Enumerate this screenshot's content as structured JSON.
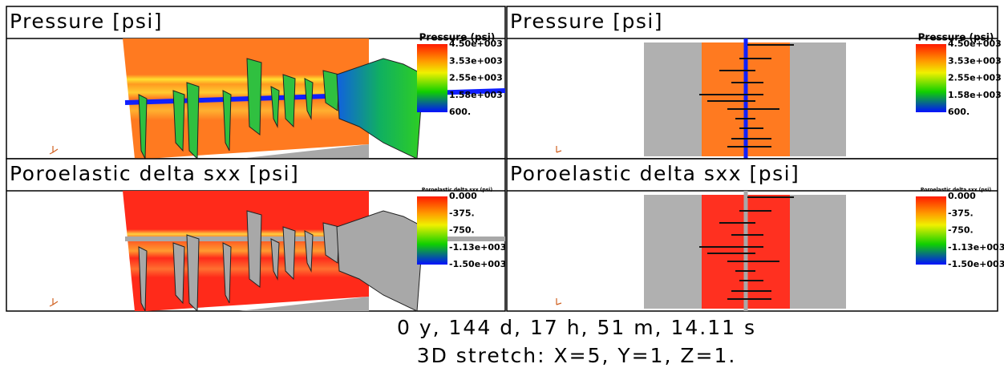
{
  "panels": [
    {
      "title": "Pressure [psi]",
      "legend": {
        "title": "Pressure (psi)",
        "labels": [
          "4.50e+003",
          "3.53e+003",
          "2.55e+003",
          "1.58e+003",
          "600."
        ]
      }
    },
    {
      "title": "Pressure [psi]",
      "legend": {
        "title": "Pressure (psi)",
        "labels": [
          "4.50e+003",
          "3.53e+003",
          "2.55e+003",
          "1.58e+003",
          "600."
        ]
      }
    },
    {
      "title": "Poroelastic delta sxx [psi]",
      "legend": {
        "title": "Poroelastic delta sxx (psi)",
        "labels": [
          "0.000",
          "-375.",
          "-750.",
          "-1.13e+003",
          "-1.50e+003"
        ]
      }
    },
    {
      "title": "Poroelastic delta sxx [psi]",
      "legend": {
        "title": "Poroelastic delta sxx (psi)",
        "labels": [
          "0.000",
          "-375.",
          "-750.",
          "-1.13e+003",
          "-1.50e+003"
        ]
      }
    }
  ],
  "footer": {
    "time": "0 y, 144 d, 17 h, 51 m, 14.11 s",
    "stretch": "3D stretch: X=5, Y=1, Z=1."
  }
}
